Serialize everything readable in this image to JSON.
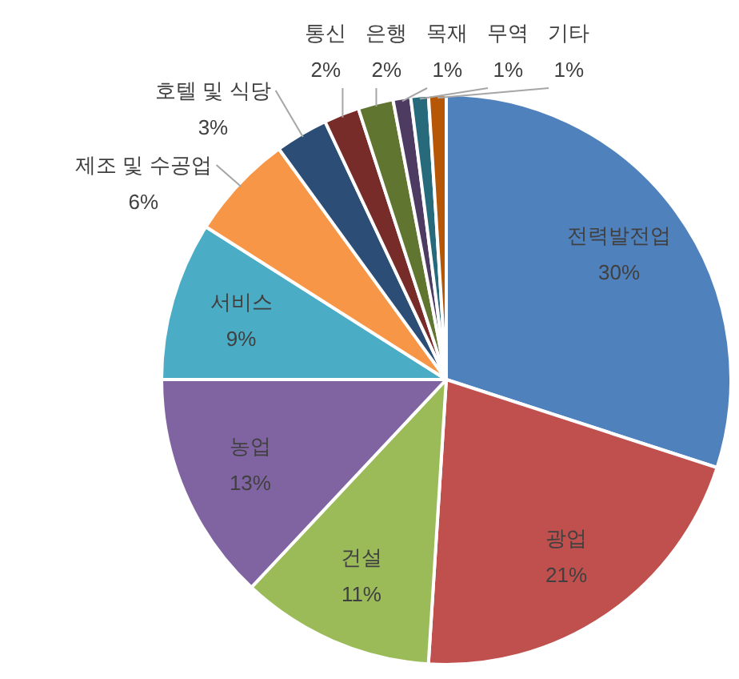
{
  "chart_data": {
    "type": "pie",
    "categories": [
      "전력발전업",
      "광업",
      "건설",
      "농업",
      "서비스",
      "제조 및 수공업",
      "호텔 및 식당",
      "통신",
      "은행",
      "목재",
      "무역",
      "기타"
    ],
    "values": [
      30,
      21,
      11,
      13,
      9,
      6,
      3,
      2,
      2,
      1,
      1,
      1
    ],
    "value_labels": [
      "30%",
      "21%",
      "11%",
      "13%",
      "9%",
      "6%",
      "3%",
      "2%",
      "2%",
      "1%",
      "1%",
      "1%"
    ],
    "colors": [
      "#4f81bd",
      "#c0504d",
      "#9bbb59",
      "#8064a2",
      "#4bacc6",
      "#f79646",
      "#2c4d75",
      "#772c2a",
      "#5f7530",
      "#4d3b62",
      "#276a7c",
      "#b65708"
    ]
  }
}
